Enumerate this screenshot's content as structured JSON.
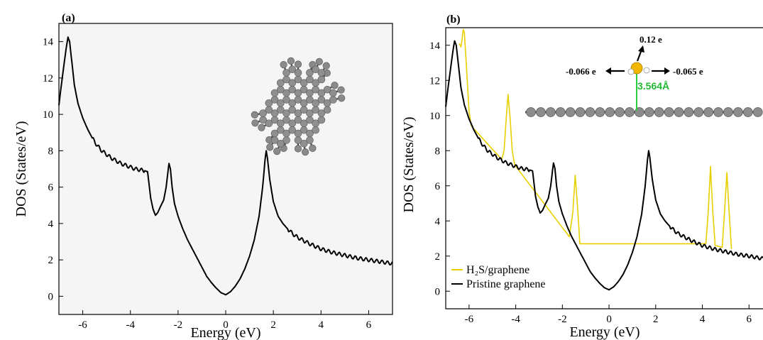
{
  "chart_data": [
    {
      "type": "line",
      "panel_label": "(a)",
      "xlabel": "Energy (eV)",
      "ylabel": "DOS (States/eV)",
      "xlim": [
        -7,
        7
      ],
      "ylim": [
        -1,
        15
      ],
      "xticks": [
        -6,
        -4,
        -2,
        0,
        2,
        4,
        6
      ],
      "yticks": [
        0,
        2,
        4,
        6,
        8,
        10,
        12,
        14
      ],
      "background": "#f5f5f5",
      "series": [
        {
          "color": "#000000",
          "points": [
            [
              -7.0,
              10.5
            ],
            [
              -6.9,
              11.6
            ],
            [
              -6.8,
              12.6
            ],
            [
              -6.7,
              13.6
            ],
            [
              -6.62,
              14.25
            ],
            [
              -6.55,
              14.0
            ],
            [
              -6.45,
              12.8
            ],
            [
              -6.35,
              11.6
            ],
            [
              -6.2,
              10.6
            ],
            [
              -6.0,
              9.8
            ],
            [
              -5.8,
              9.2
            ],
            [
              -5.6,
              8.7
            ],
            [
              -5.4,
              8.3
            ],
            [
              -5.2,
              8.0
            ],
            [
              -5.0,
              7.8
            ],
            [
              -4.8,
              7.6
            ],
            [
              -4.6,
              7.45
            ],
            [
              -4.4,
              7.3
            ],
            [
              -4.2,
              7.2
            ],
            [
              -4.0,
              7.1
            ],
            [
              -3.8,
              7.0
            ],
            [
              -3.6,
              6.95
            ],
            [
              -3.4,
              6.9
            ],
            [
              -3.28,
              6.85
            ],
            [
              -3.22,
              6.2
            ],
            [
              -3.15,
              5.4
            ],
            [
              -3.05,
              4.8
            ],
            [
              -2.95,
              4.45
            ],
            [
              -2.85,
              4.6
            ],
            [
              -2.75,
              4.9
            ],
            [
              -2.6,
              5.3
            ],
            [
              -2.5,
              6.0
            ],
            [
              -2.42,
              6.9
            ],
            [
              -2.38,
              7.3
            ],
            [
              -2.32,
              7.0
            ],
            [
              -2.25,
              6.0
            ],
            [
              -2.15,
              5.1
            ],
            [
              -2.0,
              4.4
            ],
            [
              -1.8,
              3.7
            ],
            [
              -1.6,
              3.1
            ],
            [
              -1.4,
              2.6
            ],
            [
              -1.2,
              2.1
            ],
            [
              -1.0,
              1.6
            ],
            [
              -0.8,
              1.1
            ],
            [
              -0.6,
              0.75
            ],
            [
              -0.4,
              0.45
            ],
            [
              -0.2,
              0.2
            ],
            [
              0.0,
              0.08
            ],
            [
              0.2,
              0.25
            ],
            [
              0.4,
              0.55
            ],
            [
              0.6,
              0.95
            ],
            [
              0.8,
              1.5
            ],
            [
              1.0,
              2.2
            ],
            [
              1.2,
              3.1
            ],
            [
              1.4,
              4.4
            ],
            [
              1.55,
              6.0
            ],
            [
              1.65,
              7.5
            ],
            [
              1.7,
              8.0
            ],
            [
              1.75,
              7.6
            ],
            [
              1.85,
              6.4
            ],
            [
              2.0,
              5.2
            ],
            [
              2.2,
              4.4
            ],
            [
              2.4,
              4.0
            ],
            [
              2.6,
              3.7
            ],
            [
              2.8,
              3.45
            ],
            [
              3.0,
              3.25
            ],
            [
              3.5,
              2.9
            ],
            [
              4.0,
              2.6
            ],
            [
              4.5,
              2.4
            ],
            [
              5.0,
              2.25
            ],
            [
              5.5,
              2.1
            ],
            [
              6.0,
              2.0
            ],
            [
              6.5,
              1.9
            ],
            [
              7.0,
              1.8
            ]
          ]
        }
      ]
    },
    {
      "type": "line",
      "panel_label": "(b)",
      "xlabel": "Energy (eV)",
      "ylabel": "DOS (States/eV)",
      "xlim": [
        -7,
        6.6
      ],
      "ylim": [
        -1,
        15
      ],
      "xticks": [
        -6,
        -4,
        -2,
        0,
        2,
        4,
        6
      ],
      "yticks": [
        0,
        2,
        4,
        6,
        8,
        10,
        12,
        14
      ],
      "legend_position": "bottom-left",
      "annotations": {
        "charge_top": "0.12 e",
        "charge_left": "-0.066 e",
        "charge_right": "-0.065 e",
        "distance": "3.564Å"
      },
      "series": [
        {
          "name": "H₂S/graphene",
          "color": "#e8d000",
          "points": [
            [
              -6.42,
              14.1
            ],
            [
              -6.35,
              13.9
            ],
            [
              -6.3,
              14.3
            ],
            [
              -6.25,
              14.9
            ],
            [
              -6.2,
              14.7
            ],
            [
              -6.1,
              12.5
            ],
            [
              -6.0,
              10.2
            ],
            [
              -5.9,
              9.4
            ],
            [
              -4.6,
              7.5
            ],
            [
              -4.5,
              8.0
            ],
            [
              -4.4,
              10.0
            ],
            [
              -4.33,
              11.2
            ],
            [
              -4.25,
              10.0
            ],
            [
              -4.15,
              8.0
            ],
            [
              -4.05,
              7.2
            ],
            [
              -1.7,
              3.1
            ],
            [
              -1.55,
              4.5
            ],
            [
              -1.45,
              6.6
            ],
            [
              -1.35,
              4.8
            ],
            [
              -1.25,
              2.7
            ],
            [
              4.15,
              2.7
            ],
            [
              4.25,
              4.5
            ],
            [
              4.35,
              7.1
            ],
            [
              4.45,
              4.5
            ],
            [
              4.55,
              2.6
            ],
            [
              4.85,
              2.5
            ],
            [
              4.95,
              4.5
            ],
            [
              5.05,
              6.75
            ],
            [
              5.15,
              4.5
            ],
            [
              5.25,
              2.4
            ]
          ]
        },
        {
          "name": "Pristine graphene",
          "color": "#000000",
          "points": [
            [
              -7.0,
              10.5
            ],
            [
              -6.9,
              11.6
            ],
            [
              -6.8,
              12.6
            ],
            [
              -6.7,
              13.6
            ],
            [
              -6.62,
              14.25
            ],
            [
              -6.55,
              14.0
            ],
            [
              -6.45,
              12.8
            ],
            [
              -6.35,
              11.6
            ],
            [
              -6.2,
              10.6
            ],
            [
              -6.0,
              9.8
            ],
            [
              -5.8,
              9.2
            ],
            [
              -5.6,
              8.7
            ],
            [
              -5.4,
              8.3
            ],
            [
              -5.2,
              8.0
            ],
            [
              -5.0,
              7.8
            ],
            [
              -4.8,
              7.6
            ],
            [
              -4.6,
              7.45
            ],
            [
              -4.4,
              7.3
            ],
            [
              -4.2,
              7.2
            ],
            [
              -4.0,
              7.1
            ],
            [
              -3.8,
              7.0
            ],
            [
              -3.6,
              6.95
            ],
            [
              -3.4,
              6.9
            ],
            [
              -3.28,
              6.85
            ],
            [
              -3.22,
              6.2
            ],
            [
              -3.15,
              5.4
            ],
            [
              -3.05,
              4.8
            ],
            [
              -2.95,
              4.45
            ],
            [
              -2.85,
              4.6
            ],
            [
              -2.75,
              4.9
            ],
            [
              -2.6,
              5.3
            ],
            [
              -2.5,
              6.0
            ],
            [
              -2.42,
              6.9
            ],
            [
              -2.38,
              7.3
            ],
            [
              -2.32,
              7.0
            ],
            [
              -2.25,
              6.0
            ],
            [
              -2.15,
              5.1
            ],
            [
              -2.0,
              4.4
            ],
            [
              -1.8,
              3.7
            ],
            [
              -1.6,
              3.1
            ],
            [
              -1.4,
              2.6
            ],
            [
              -1.2,
              2.1
            ],
            [
              -1.0,
              1.6
            ],
            [
              -0.8,
              1.1
            ],
            [
              -0.6,
              0.75
            ],
            [
              -0.4,
              0.45
            ],
            [
              -0.2,
              0.2
            ],
            [
              0.0,
              0.08
            ],
            [
              0.2,
              0.25
            ],
            [
              0.4,
              0.55
            ],
            [
              0.6,
              0.95
            ],
            [
              0.8,
              1.5
            ],
            [
              1.0,
              2.2
            ],
            [
              1.2,
              3.1
            ],
            [
              1.4,
              4.4
            ],
            [
              1.55,
              6.0
            ],
            [
              1.65,
              7.5
            ],
            [
              1.7,
              8.0
            ],
            [
              1.75,
              7.6
            ],
            [
              1.85,
              6.4
            ],
            [
              2.0,
              5.2
            ],
            [
              2.2,
              4.4
            ],
            [
              2.4,
              4.0
            ],
            [
              2.6,
              3.7
            ],
            [
              2.8,
              3.45
            ],
            [
              3.0,
              3.25
            ],
            [
              3.5,
              2.9
            ],
            [
              4.0,
              2.6
            ],
            [
              4.5,
              2.4
            ],
            [
              5.0,
              2.25
            ],
            [
              5.5,
              2.1
            ],
            [
              6.0,
              2.0
            ],
            [
              6.6,
              1.85
            ]
          ]
        }
      ]
    }
  ]
}
